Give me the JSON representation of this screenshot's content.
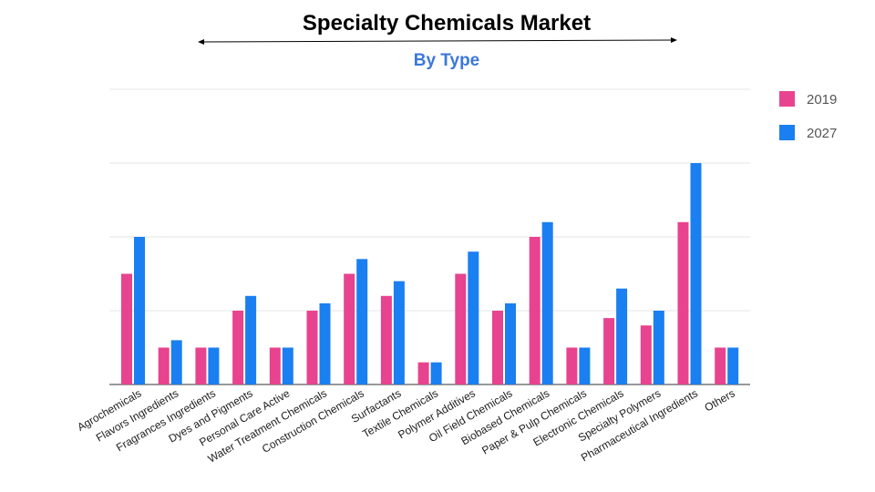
{
  "chart_data": {
    "type": "bar",
    "title": "Specialty Chemicals Market",
    "subtitle": "By Type",
    "xlabel": "",
    "ylabel": "",
    "ylim": [
      0,
      4
    ],
    "grid": true,
    "legend_position": "top-right",
    "categories": [
      "Agrochemicals",
      "Flavors Ingredients",
      "Fragrances Ingredients",
      "Dyes and Pigments",
      "Personal Care Active",
      "Water Treatment Chemicals",
      "Construction Chemicals",
      "Surfactants",
      "Textile Chemicals",
      "Polymer Additives",
      "Oil Field Chemicals",
      "Biobased Chemicals",
      "Paper & Pulp Chemicals",
      "Electronic Chemicals",
      "Specialty Polymers",
      "Pharmaceutical Ingredients",
      "Others"
    ],
    "series": [
      {
        "name": "2019",
        "color": "#e8438f",
        "values": [
          1.5,
          0.5,
          0.5,
          1.0,
          0.5,
          1.0,
          1.5,
          1.2,
          0.3,
          1.5,
          1.0,
          2.0,
          0.5,
          0.9,
          0.8,
          2.2,
          0.5
        ]
      },
      {
        "name": "2027",
        "color": "#1a7ff0",
        "values": [
          2.0,
          0.6,
          0.5,
          1.2,
          0.5,
          1.1,
          1.7,
          1.4,
          0.3,
          1.8,
          1.1,
          2.2,
          0.5,
          1.3,
          1.0,
          3.0,
          0.5
        ]
      }
    ],
    "subtitle_color": "#3c78d8"
  }
}
